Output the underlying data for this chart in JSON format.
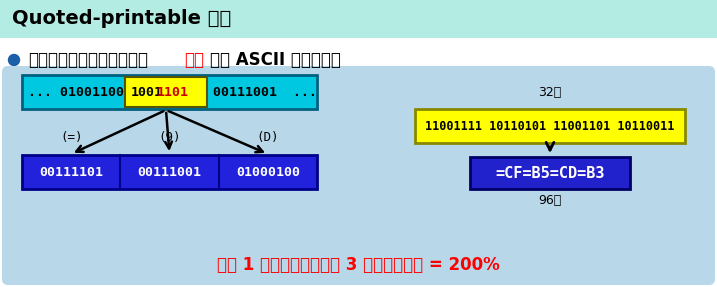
{
  "title": "Quoted-printable 编码",
  "title_bg": "#b2ece2",
  "bullet_text_black1": "适用于所传送的数据中只有",
  "bullet_text_red": "少量",
  "bullet_text_black2": "的非 ASCII 码的情况。",
  "panel_bg": "#b8d8ea",
  "top_box_bg": "#00c8e0",
  "top_box_left_text": "... 01001100",
  "top_box_highlight_bg": "#ffff00",
  "top_box_highlight_text": "10011101",
  "top_box_highlight_color": "#cc0000",
  "top_box_end_text": "00111001  ...",
  "arrow_labels": [
    "(=)",
    "(9)",
    "(D)"
  ],
  "bottom_boxes_bg": "#2222dd",
  "bottom_boxes_text": [
    "00111101",
    "00111001",
    "01000100"
  ],
  "right_label_top": "32位",
  "right_top_box_bg": "#ffff00",
  "right_top_box_text": "11001111 10110101 11001101 10110011",
  "right_bottom_box_bg": "#2222cc",
  "right_bottom_box_text": "=CF=B5=CD=B3",
  "right_label_bottom": "96位",
  "footer_text": "原来 1 个字节，现在需要 3 个字节，开销 = 200%",
  "footer_color": "#ff0000",
  "fig_w": 7.17,
  "fig_h": 2.87,
  "dpi": 100
}
